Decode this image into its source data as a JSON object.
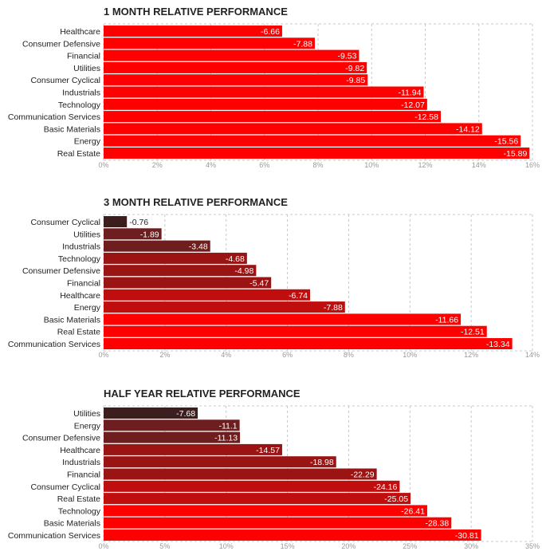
{
  "chart_data": [
    {
      "type": "bar",
      "orientation": "horizontal",
      "title": "1 MONTH RELATIVE PERFORMANCE",
      "xlim": [
        0,
        16
      ],
      "ticks": [
        "0%",
        "2%",
        "4%",
        "6%",
        "8%",
        "10%",
        "12%",
        "14%",
        "16%"
      ],
      "categories": [
        "Healthcare",
        "Consumer Defensive",
        "Financial",
        "Utilities",
        "Consumer Cyclical",
        "Industrials",
        "Technology",
        "Communication Services",
        "Basic Materials",
        "Energy",
        "Real Estate"
      ],
      "values": [
        -6.66,
        -7.88,
        -9.53,
        -9.82,
        -9.85,
        -11.94,
        -12.07,
        -12.58,
        -14.12,
        -15.56,
        -15.89
      ],
      "value_labels": [
        "-6.66",
        "-7.88",
        "-9.53",
        "-9.82",
        "-9.85",
        "-11.94",
        "-12.07",
        "-12.58",
        "-14.12",
        "-15.56",
        "-15.89"
      ]
    },
    {
      "type": "bar",
      "orientation": "horizontal",
      "title": "3 MONTH RELATIVE PERFORMANCE",
      "xlim": [
        0,
        14
      ],
      "ticks": [
        "0%",
        "2%",
        "4%",
        "6%",
        "8%",
        "10%",
        "12%",
        "14%"
      ],
      "categories": [
        "Consumer Cyclical",
        "Utilities",
        "Industrials",
        "Technology",
        "Consumer Defensive",
        "Financial",
        "Healthcare",
        "Energy",
        "Basic Materials",
        "Real Estate",
        "Communication Services"
      ],
      "values": [
        -0.76,
        -1.89,
        -3.48,
        -4.68,
        -4.98,
        -5.47,
        -6.74,
        -7.88,
        -11.66,
        -12.51,
        -13.34
      ],
      "value_labels": [
        "-0.76",
        "-1.89",
        "-3.48",
        "-4.68",
        "-4.98",
        "-5.47",
        "-6.74",
        "-7.88",
        "-11.66",
        "-12.51",
        "-13.34"
      ]
    },
    {
      "type": "bar",
      "orientation": "horizontal",
      "title": "HALF YEAR RELATIVE PERFORMANCE",
      "xlim": [
        0,
        35
      ],
      "ticks": [
        "0%",
        "5%",
        "10%",
        "15%",
        "20%",
        "25%",
        "30%",
        "35%"
      ],
      "categories": [
        "Utilities",
        "Energy",
        "Consumer Defensive",
        "Healthcare",
        "Industrials",
        "Financial",
        "Consumer Cyclical",
        "Real Estate",
        "Technology",
        "Basic Materials",
        "Communication Services"
      ],
      "values": [
        -7.68,
        -11.1,
        -11.13,
        -14.57,
        -18.98,
        -22.29,
        -24.16,
        -25.05,
        -26.41,
        -28.38,
        -30.81
      ],
      "value_labels": [
        "-7.68",
        "-11.1",
        "-11.13",
        "-14.57",
        "-18.98",
        "-22.29",
        "-24.16",
        "-25.05",
        "-26.41",
        "-28.38",
        "-30.81"
      ]
    }
  ],
  "colors": {
    "darkest": "#3b1f1f",
    "darker": "#6e1e1e",
    "dark": "#9a1414",
    "mid": "#c00e0e",
    "bright": "#ff0000",
    "grid": "#c8c8c8",
    "tick": "#999999",
    "label": "#222222"
  }
}
